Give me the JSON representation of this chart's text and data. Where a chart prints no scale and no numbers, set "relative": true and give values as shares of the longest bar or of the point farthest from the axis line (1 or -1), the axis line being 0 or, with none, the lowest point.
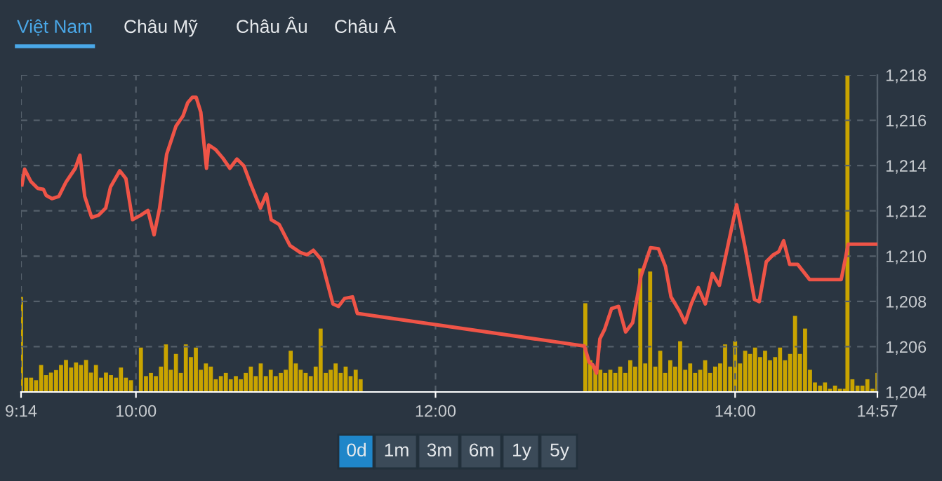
{
  "chart_data": [
    {
      "type": "line",
      "annotations": [
        "Việt Nam",
        "Châu Mỹ",
        "Châu Âu",
        "Châu Á",
        "0d",
        "1m",
        "3m",
        "6m",
        "1y",
        "5y"
      ],
      "xlim": [
        9.233,
        14.95
      ],
      "xticks": [
        {
          "value": 9.233,
          "label": "9:14"
        },
        {
          "value": 10,
          "label": "10:00"
        },
        {
          "value": 12,
          "label": "12:00"
        },
        {
          "value": 14,
          "label": "14:00"
        },
        {
          "value": 14.95,
          "label": "14:57"
        }
      ],
      "ylim": [
        1204,
        1218
      ],
      "yticks": [
        {
          "value": 1204,
          "label": "1,204"
        },
        {
          "value": 1206,
          "label": "1,206"
        },
        {
          "value": 1208,
          "label": "1,208"
        },
        {
          "value": 1210,
          "label": "1,210"
        },
        {
          "value": 1212,
          "label": "1,212"
        },
        {
          "value": 1214,
          "label": "1,214"
        },
        {
          "value": 1216,
          "label": "1,216"
        },
        {
          "value": 1218,
          "label": "1,218"
        }
      ],
      "grid": true,
      "series": [
        {
          "color": "#ef5447",
          "x": [
            9.239,
            9.257,
            9.298,
            9.345,
            9.382,
            9.401,
            9.439,
            9.485,
            9.532,
            9.595,
            9.626,
            9.658,
            9.704,
            9.751,
            9.798,
            9.83,
            9.892,
            9.933,
            9.977,
            10.033,
            10.08,
            10.121,
            10.158,
            10.205,
            10.267,
            10.314,
            10.345,
            10.377,
            10.402,
            10.433,
            10.471,
            10.486,
            10.533,
            10.58,
            10.627,
            10.674,
            10.721,
            10.768,
            10.831,
            10.871,
            10.903,
            10.956,
            11.028,
            11.097,
            11.143,
            11.184,
            11.237,
            11.315,
            11.352,
            11.393,
            11.446,
            11.478,
            12.993,
            13.027,
            13.05,
            13.075,
            13.097,
            13.128,
            13.175,
            13.222,
            13.269,
            13.316,
            13.372,
            13.435,
            13.488,
            13.535,
            13.572,
            13.629,
            13.666,
            13.707,
            13.754,
            13.801,
            13.848,
            13.895,
            13.942,
            14.01,
            14.067,
            14.129,
            14.161,
            14.208,
            14.255,
            14.292,
            14.324,
            14.364,
            14.417,
            14.498,
            14.708,
            14.755,
            14.942
          ],
          "values": [
            1213.15,
            1213.84,
            1213.3,
            1212.99,
            1212.95,
            1212.68,
            1212.54,
            1212.64,
            1213.26,
            1213.88,
            1214.46,
            1212.64,
            1211.71,
            1211.81,
            1212.12,
            1213.05,
            1213.77,
            1213.42,
            1211.61,
            1211.81,
            1212.02,
            1210.94,
            1212.12,
            1214.5,
            1215.74,
            1216.19,
            1216.77,
            1217.02,
            1217.02,
            1216.36,
            1213.88,
            1214.91,
            1214.7,
            1214.33,
            1213.88,
            1214.29,
            1213.98,
            1213.15,
            1212.12,
            1212.74,
            1211.61,
            1211.4,
            1210.47,
            1210.16,
            1210.06,
            1210.26,
            1209.85,
            1207.89,
            1207.78,
            1208.13,
            1208.2,
            1207.47,
            1206.03,
            1205.3,
            1205.2,
            1204.83,
            1206.34,
            1206.75,
            1207.68,
            1207.78,
            1206.65,
            1207.06,
            1209.13,
            1210.37,
            1210.33,
            1209.54,
            1208.2,
            1207.57,
            1207.06,
            1207.89,
            1208.61,
            1207.89,
            1209.23,
            1208.71,
            1210.16,
            1212.27,
            1210.37,
            1208.09,
            1207.99,
            1209.75,
            1210.06,
            1210.2,
            1210.68,
            1209.64,
            1209.64,
            1208.96,
            1208.96,
            1210.53,
            1210.53
          ]
        }
      ]
    },
    {
      "type": "bar",
      "relative": true,
      "xlim": [
        9.233,
        14.95
      ],
      "tick_labels": false,
      "series": [
        {
          "color": "#c9a400",
          "x": [
            9.233,
            9.267,
            9.3,
            9.333,
            9.367,
            9.4,
            9.433,
            9.467,
            9.5,
            9.533,
            9.567,
            9.6,
            9.633,
            9.667,
            9.7,
            9.733,
            9.767,
            9.8,
            9.833,
            9.867,
            9.9,
            9.933,
            9.967,
            10.033,
            10.067,
            10.1,
            10.133,
            10.167,
            10.2,
            10.233,
            10.267,
            10.3,
            10.333,
            10.367,
            10.4,
            10.433,
            10.467,
            10.5,
            10.533,
            10.567,
            10.6,
            10.633,
            10.667,
            10.7,
            10.733,
            10.767,
            10.8,
            10.833,
            10.867,
            10.9,
            10.933,
            10.967,
            11.0,
            11.033,
            11.067,
            11.1,
            11.133,
            11.167,
            11.2,
            11.233,
            11.267,
            11.3,
            11.333,
            11.367,
            11.4,
            11.433,
            11.467,
            11.5,
            13.0,
            13.033,
            13.067,
            13.1,
            13.133,
            13.167,
            13.2,
            13.233,
            13.267,
            13.3,
            13.333,
            13.367,
            13.4,
            13.433,
            13.467,
            13.5,
            13.533,
            13.567,
            13.6,
            13.633,
            13.667,
            13.7,
            13.733,
            13.767,
            13.8,
            13.833,
            13.867,
            13.9,
            13.933,
            13.967,
            14.0,
            14.033,
            14.067,
            14.1,
            14.133,
            14.167,
            14.2,
            14.233,
            14.267,
            14.3,
            14.333,
            14.367,
            14.4,
            14.433,
            14.467,
            14.5,
            14.533,
            14.567,
            14.6,
            14.633,
            14.667,
            14.7,
            14.733,
            14.75,
            14.783,
            14.817,
            14.85,
            14.883,
            14.917,
            14.95
          ],
          "values": [
            0.3,
            0.045,
            0.045,
            0.037,
            0.085,
            0.053,
            0.061,
            0.069,
            0.085,
            0.101,
            0.077,
            0.093,
            0.085,
            0.101,
            0.061,
            0.085,
            0.045,
            0.061,
            0.053,
            0.045,
            0.077,
            0.045,
            0.037,
            0.14,
            0.05,
            0.06,
            0.05,
            0.08,
            0.15,
            0.07,
            0.12,
            0.06,
            0.15,
            0.11,
            0.14,
            0.07,
            0.09,
            0.08,
            0.04,
            0.05,
            0.06,
            0.04,
            0.05,
            0.04,
            0.06,
            0.08,
            0.05,
            0.09,
            0.05,
            0.07,
            0.05,
            0.06,
            0.07,
            0.13,
            0.09,
            0.07,
            0.06,
            0.05,
            0.08,
            0.2,
            0.06,
            0.07,
            0.09,
            0.06,
            0.08,
            0.05,
            0.07,
            0.04,
            0.28,
            0.1,
            0.08,
            0.07,
            0.06,
            0.07,
            0.06,
            0.08,
            0.06,
            0.1,
            0.08,
            0.39,
            0.09,
            0.38,
            0.08,
            0.13,
            0.06,
            0.1,
            0.08,
            0.16,
            0.07,
            0.09,
            0.06,
            0.07,
            0.1,
            0.06,
            0.08,
            0.09,
            0.15,
            0.08,
            0.16,
            0.09,
            0.13,
            0.12,
            0.14,
            0.11,
            0.13,
            0.1,
            0.11,
            0.14,
            0.1,
            0.12,
            0.24,
            0.12,
            0.2,
            0.07,
            0.03,
            0.02,
            0.03,
            0.01,
            0.02,
            0.01,
            0.01,
            1,
            0.04,
            0.02,
            0.02,
            0.04,
            0.01,
            0.06
          ]
        }
      ]
    }
  ]
}
